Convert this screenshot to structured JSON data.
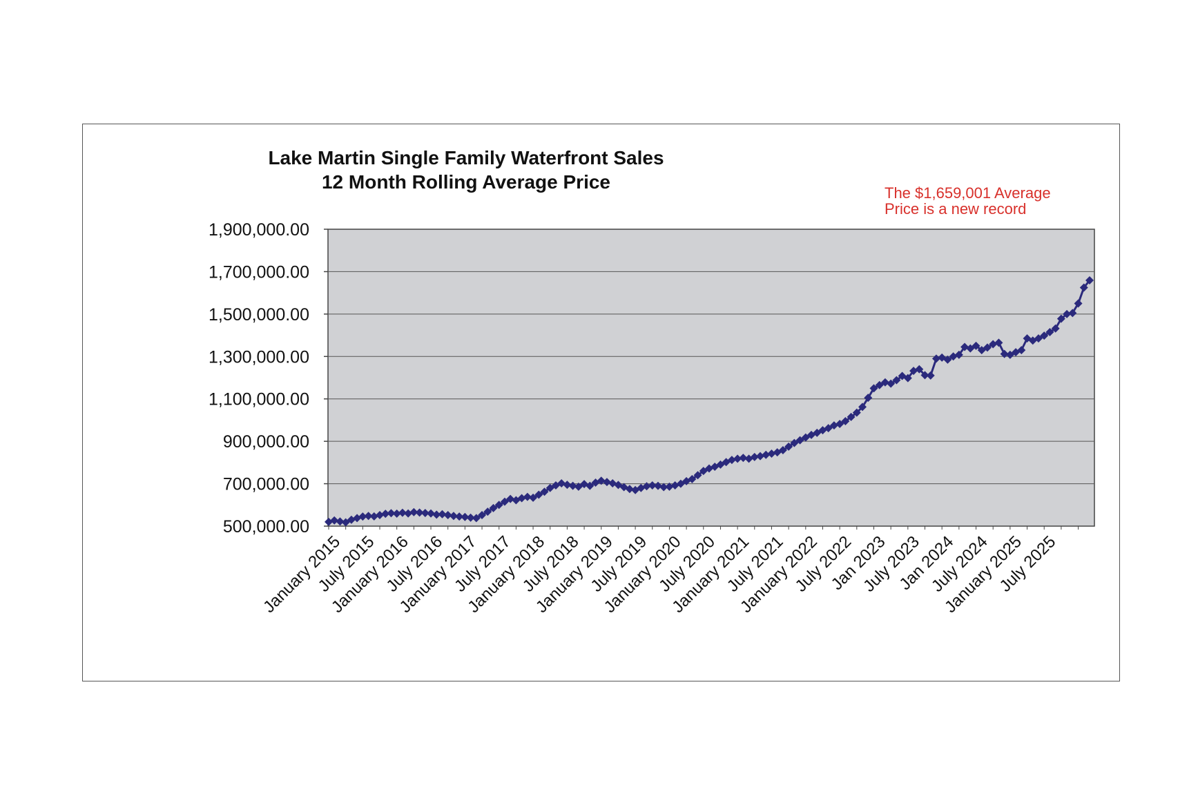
{
  "chart_data": {
    "type": "line",
    "title": [
      "Lake Martin Single Family Waterfront Sales",
      "12 Month Rolling Average Price"
    ],
    "annotation": [
      "The $1,659,001 Average",
      "Price is a new record"
    ],
    "xlabel": "",
    "ylabel": "",
    "ylim": [
      500000,
      1900000
    ],
    "yticks": [
      500000,
      700000,
      900000,
      1100000,
      1300000,
      1500000,
      1700000,
      1900000
    ],
    "ytick_labels": [
      "500,000.00",
      "700,000.00",
      "900,000.00",
      "1,100,000.00",
      "1,300,000.00",
      "1,500,000.00",
      "1,700,000.00",
      "1,900,000.00"
    ],
    "x_labels": [
      {
        "index": 0,
        "label": "January 2015"
      },
      {
        "index": 6,
        "label": "July 2015"
      },
      {
        "index": 12,
        "label": "January 2016"
      },
      {
        "index": 18,
        "label": "July 2016"
      },
      {
        "index": 24,
        "label": "January 2017"
      },
      {
        "index": 30,
        "label": "July 2017"
      },
      {
        "index": 36,
        "label": "January 2018"
      },
      {
        "index": 42,
        "label": "July 2018"
      },
      {
        "index": 48,
        "label": "January 2019"
      },
      {
        "index": 54,
        "label": "July 2019"
      },
      {
        "index": 60,
        "label": "January 2020"
      },
      {
        "index": 66,
        "label": "July 2020"
      },
      {
        "index": 72,
        "label": "January 2021"
      },
      {
        "index": 78,
        "label": "July 2021"
      },
      {
        "index": 84,
        "label": "January 2022"
      },
      {
        "index": 90,
        "label": "July 2022"
      },
      {
        "index": 96,
        "label": "Jan 2023"
      },
      {
        "index": 102,
        "label": "July 2023"
      },
      {
        "index": 108,
        "label": "Jan 2024"
      },
      {
        "index": 114,
        "label": "July 2024"
      },
      {
        "index": 120,
        "label": "January 2025"
      },
      {
        "index": 126,
        "label": "July 2025"
      }
    ],
    "series": [
      {
        "name": "12 Month Rolling Average Price",
        "color": "#2b2a7c",
        "values": [
          520000,
          527000,
          522000,
          518000,
          530000,
          538000,
          545000,
          548000,
          546000,
          552000,
          558000,
          561000,
          559000,
          563000,
          560000,
          566000,
          564000,
          562000,
          560000,
          554000,
          556000,
          552000,
          548000,
          545000,
          543000,
          540000,
          538000,
          552000,
          568000,
          585000,
          600000,
          615000,
          628000,
          622000,
          632000,
          638000,
          634000,
          648000,
          662000,
          680000,
          692000,
          702000,
          695000,
          690000,
          686000,
          698000,
          690000,
          705000,
          714000,
          708000,
          702000,
          694000,
          684000,
          675000,
          670000,
          680000,
          688000,
          692000,
          690000,
          684000,
          686000,
          692000,
          700000,
          712000,
          722000,
          740000,
          760000,
          772000,
          780000,
          790000,
          802000,
          812000,
          818000,
          822000,
          818000,
          826000,
          830000,
          836000,
          842000,
          848000,
          858000,
          875000,
          892000,
          905000,
          918000,
          930000,
          940000,
          952000,
          962000,
          975000,
          982000,
          995000,
          1015000,
          1035000,
          1062000,
          1105000,
          1150000,
          1165000,
          1178000,
          1172000,
          1188000,
          1208000,
          1198000,
          1232000,
          1240000,
          1212000,
          1210000,
          1290000,
          1295000,
          1285000,
          1300000,
          1308000,
          1345000,
          1338000,
          1350000,
          1330000,
          1342000,
          1358000,
          1365000,
          1312000,
          1308000,
          1320000,
          1330000,
          1385000,
          1375000,
          1385000,
          1398000,
          1415000,
          1432000,
          1478000,
          1500000,
          1505000,
          1550000,
          1625000,
          1659001
        ]
      }
    ]
  }
}
